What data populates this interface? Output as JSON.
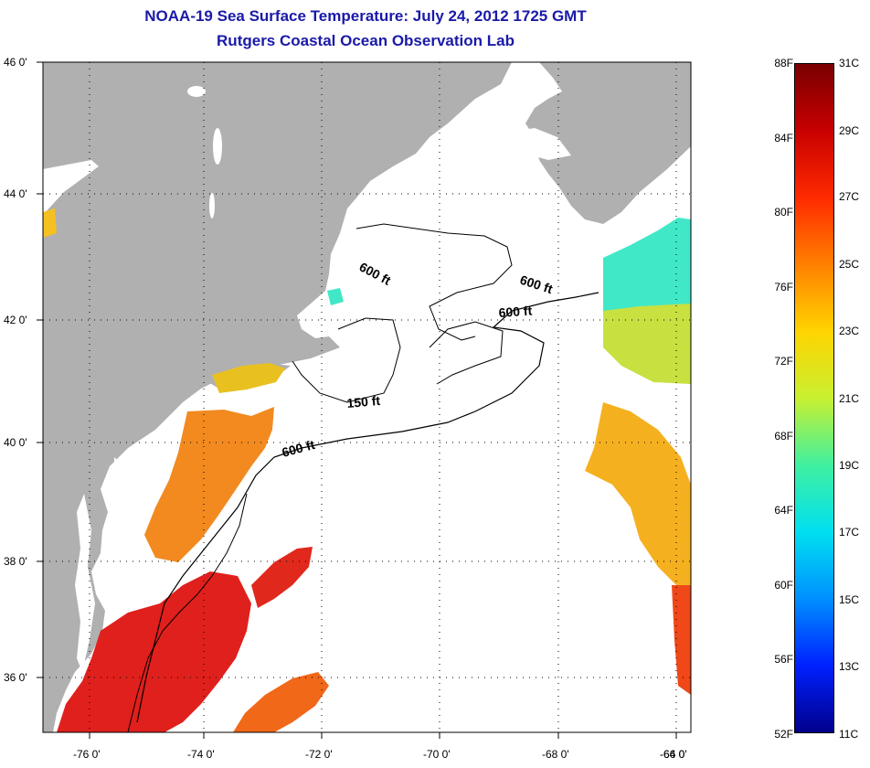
{
  "title": "NOAA-19 Sea Surface Temperature:  July 24, 2012 1725 GMT",
  "subtitle": "Rutgers Coastal Ocean Observation Lab",
  "lat_labels": [
    "46 0'",
    "44 0'",
    "42 0'",
    "40 0'",
    "38 0'",
    "36 0'"
  ],
  "lon_labels": [
    "-76 0'",
    "-74 0'",
    "-72 0'",
    "-70 0'",
    "-68 0'",
    "-66 0'",
    "-64 0'"
  ],
  "contours": [
    "600 ft",
    "600 ft",
    "600 ft",
    "150 ft",
    "600 ft"
  ],
  "colorbar": {
    "f_labels": [
      "88F",
      "84F",
      "80F",
      "76F",
      "72F",
      "68F",
      "64F",
      "60F",
      "56F",
      "52F"
    ],
    "c_labels": [
      "31C",
      "29C",
      "27C",
      "25C",
      "23C",
      "21C",
      "19C",
      "17C",
      "15C",
      "13C",
      "11C"
    ],
    "colors": [
      "#7a0000",
      "#c80000",
      "#ff2a00",
      "#ff8000",
      "#ffd400",
      "#c8f030",
      "#40f0a0",
      "#00e0f0",
      "#0090ff",
      "#0020ff",
      "#00008a"
    ]
  },
  "colors": {
    "land": "#b0b0b0",
    "title": "#1a1aa8",
    "sst_red": "#e0201c",
    "sst_orange": "#f28a20",
    "sst_yellow": "#f5d020",
    "sst_cyan": "#40e8c8"
  }
}
